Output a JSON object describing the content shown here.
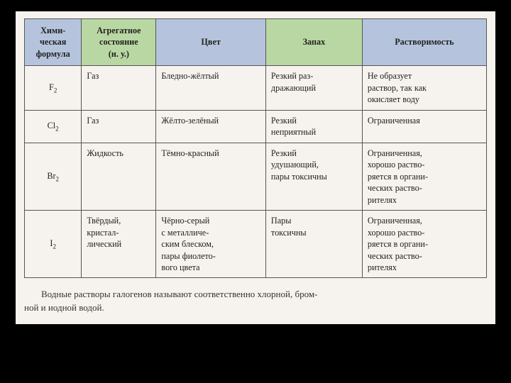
{
  "table": {
    "headers": {
      "formula": "Хими-\nческая\nформула",
      "state": "Агрегатное\nсостояние\n(н. у.)",
      "color": "Цвет",
      "smell": "Запах",
      "solubility": "Растворимость"
    },
    "header_bg": {
      "blue": "#b5c4dc",
      "green": "#b9d7a2"
    },
    "rows": [
      {
        "formula_base": "F",
        "formula_sub": "2",
        "state": "Газ",
        "color": "Бледно-жёлтый",
        "smell": "Резкий раз-\nдражающий",
        "solubility": "Не образует\nраствор, так как\nокисляет воду"
      },
      {
        "formula_base": "Cl",
        "formula_sub": "2",
        "state": "Газ",
        "color": "Жёлто-зелёный",
        "smell": "Резкий\nнеприятный",
        "solubility": "Ограниченная"
      },
      {
        "formula_base": "Br",
        "formula_sub": "2",
        "state": "Жидкость",
        "color": "Тёмно-красный",
        "smell": "Резкий\nудушающий,\nпары токсичны",
        "solubility": "Ограниченная,\nхорошо раство-\nряется в органи-\nческих раство-\nрителях"
      },
      {
        "formula_base": "I",
        "formula_sub": "2",
        "state": "Твёрдый,\nкристал-\nлический",
        "color": "Чёрно-серый\nс металличе-\nским блеском,\nпары фиолето-\nвого цвета",
        "smell": "Пары\nтоксичны",
        "solubility": "Ограниченная,\nхорошо раство-\nряется в органи-\nческих раство-\nрителях"
      }
    ]
  },
  "caption": "Водные растворы галогенов называют соответственно хлорной, бром-\nной и иодной водой."
}
